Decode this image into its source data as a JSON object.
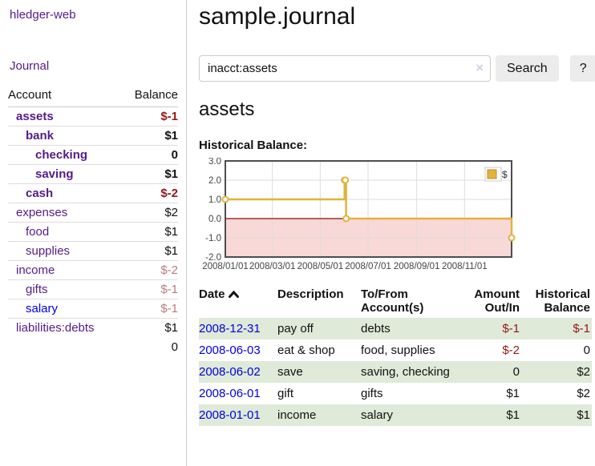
{
  "app": {
    "title": "hledger-web",
    "nav_journal": "Journal"
  },
  "colors": {
    "visited_link": "#551a8b",
    "link": "#0000dd",
    "neg_strong": "#951717",
    "neg_soft": "#b97c7c",
    "row_green": "#dfead9"
  },
  "sidebar": {
    "account_header": "Account",
    "balance_header": "Balance",
    "accounts": [
      {
        "name": "assets",
        "indent": 1,
        "balance": "$-1",
        "bold": true,
        "neg": "strong"
      },
      {
        "name": "bank",
        "indent": 2,
        "balance": "$1",
        "bold": true
      },
      {
        "name": "checking",
        "indent": 3,
        "balance": "0",
        "bold": true
      },
      {
        "name": "saving",
        "indent": 3,
        "balance": "$1",
        "bold": true
      },
      {
        "name": "cash",
        "indent": 2,
        "balance": "$-2",
        "bold": true,
        "neg": "strong"
      },
      {
        "name": "expenses",
        "indent": 1,
        "balance": "$2"
      },
      {
        "name": "food",
        "indent": 2,
        "balance": "$1"
      },
      {
        "name": "supplies",
        "indent": 2,
        "balance": "$1"
      },
      {
        "name": "income",
        "indent": 1,
        "balance": "$-2",
        "neg": "soft"
      },
      {
        "name": "gifts",
        "indent": 2,
        "balance": "$-1",
        "neg": "soft"
      },
      {
        "name": "salary",
        "indent": 2,
        "balance": "$-1",
        "neg": "soft",
        "link_state": "unvisited"
      },
      {
        "name": "liabilities:debts",
        "indent": 1,
        "balance": "$1"
      }
    ],
    "total": "0"
  },
  "header": {
    "title": "sample.journal"
  },
  "search": {
    "value": "inacct:assets",
    "clear_icon": "×",
    "button": "Search",
    "help_button": "?"
  },
  "account_page": {
    "title": "assets",
    "chart_label": "Historical Balance:"
  },
  "chart_data": {
    "type": "line",
    "step": "after",
    "title": "Historical Balance:",
    "series": [
      {
        "name": "$",
        "color": "#e2b33c",
        "points": [
          [
            "2008-01-01",
            1
          ],
          [
            "2008-06-01",
            2
          ],
          [
            "2008-06-02",
            2
          ],
          [
            "2008-06-03",
            0
          ],
          [
            "2008-12-31",
            -1
          ]
        ]
      }
    ],
    "x_range": [
      "2008-01-01",
      "2008-12-31"
    ],
    "x_ticks": [
      "2008/01/01",
      "2008/03/01",
      "2008/05/01",
      "2008/07/01",
      "2008/09/01",
      "2008/11/01"
    ],
    "y_ticks": [
      "3.0",
      "2.0",
      "1.0",
      "0.0",
      "-1.0",
      "-2.0"
    ],
    "ylim": [
      -2,
      3
    ],
    "grid": true,
    "negative_fill": "#f9d8d8",
    "zero_line_color": "#990000",
    "border_color": "#4d4d4d",
    "grid_color": "#dddddd",
    "axis_text_color": "#444444",
    "legend": {
      "label": "$",
      "position": "top-right"
    }
  },
  "register": {
    "columns": [
      {
        "label": "Date",
        "align": "left",
        "sorted": "asc"
      },
      {
        "label": "Description",
        "align": "left"
      },
      {
        "label": "To/From Account(s)",
        "align": "left"
      },
      {
        "label": "Amount Out/In",
        "align": "right"
      },
      {
        "label": "Historical Balance",
        "align": "right"
      }
    ],
    "rows": [
      {
        "date": "2008-12-31",
        "description": "pay off",
        "accounts": "debts",
        "amount": "$-1",
        "balance": "$-1"
      },
      {
        "date": "2008-06-03",
        "description": "eat & shop",
        "accounts": "food, supplies",
        "amount": "$-2",
        "balance": "0"
      },
      {
        "date": "2008-06-02",
        "description": "save",
        "accounts": "saving, checking",
        "amount": "0",
        "balance": "$2"
      },
      {
        "date": "2008-06-01",
        "description": "gift",
        "accounts": "gifts",
        "amount": "$1",
        "balance": "$2"
      },
      {
        "date": "2008-01-01",
        "description": "income",
        "accounts": "salary",
        "amount": "$1",
        "balance": "$1"
      }
    ]
  }
}
